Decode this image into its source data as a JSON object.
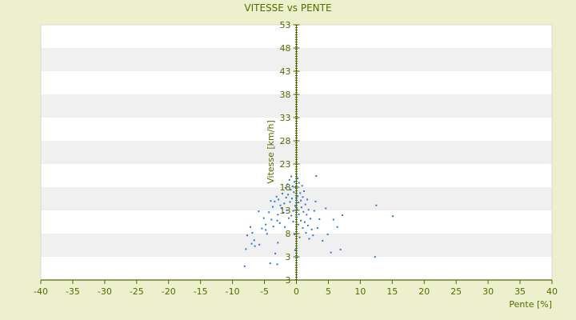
{
  "chart_data": {
    "type": "scatter",
    "title": "VITESSE vs PENTE",
    "xlabel": "Pente [%]",
    "ylabel": "Vitesse [km/h]",
    "xlim": [
      -40,
      40
    ],
    "ylim": [
      3,
      58
    ],
    "x_ticks": [
      "-40",
      "-35",
      "-30",
      "-25",
      "-20",
      "-15",
      "-10",
      "-5",
      "0",
      "5",
      "10",
      "15",
      "20",
      "25",
      "30",
      "35",
      "40"
    ],
    "y_ticks": [
      "3",
      "3",
      "8",
      "13",
      "18",
      "23",
      "28",
      "33",
      "38",
      "43",
      "48",
      "53"
    ],
    "grid": "horizontal alternating bands",
    "colors": {
      "page_bg": "#ecf0cc",
      "plot_band_light": "#ffffff",
      "plot_band_dark": "#f0f0f0",
      "text": "#556b00",
      "axis": "#556b00",
      "points": "#2f78c8"
    },
    "series": [
      {
        "points": [
          [
            -8.1,
            5.8
          ],
          [
            -7.7,
            12.1
          ],
          [
            -7.2,
            13.8
          ],
          [
            -6.9,
            12.6
          ],
          [
            -6.6,
            11.1
          ],
          [
            -5.9,
            17.0
          ],
          [
            -5.4,
            13.5
          ],
          [
            -5.1,
            15.6
          ],
          [
            -4.8,
            13.2
          ],
          [
            -4.6,
            12.4
          ],
          [
            -4.3,
            16.8
          ],
          [
            -4.0,
            19.1
          ],
          [
            -3.9,
            15.3
          ],
          [
            -3.7,
            17.9
          ],
          [
            -3.6,
            13.9
          ],
          [
            -3.4,
            19.0
          ],
          [
            -3.3,
            8.4
          ],
          [
            -3.1,
            20.0
          ],
          [
            -3.0,
            15.1
          ],
          [
            -2.9,
            16.3
          ],
          [
            -2.8,
            19.4
          ],
          [
            -2.6,
            14.6
          ],
          [
            -2.5,
            18.2
          ],
          [
            -2.3,
            17.6
          ],
          [
            -2.2,
            20.6
          ],
          [
            -2.0,
            16.7
          ],
          [
            -1.9,
            18.6
          ],
          [
            -1.8,
            13.8
          ],
          [
            -1.7,
            21.8
          ],
          [
            -1.6,
            19.8
          ],
          [
            -1.5,
            17.2
          ],
          [
            -1.4,
            22.5
          ],
          [
            -1.3,
            20.4
          ],
          [
            -1.2,
            15.6
          ],
          [
            -1.1,
            23.4
          ],
          [
            -1.0,
            18.9
          ],
          [
            -0.9,
            21.4
          ],
          [
            -0.8,
            16.1
          ],
          [
            -0.8,
            24.1
          ],
          [
            -0.7,
            19.6
          ],
          [
            -0.6,
            22.1
          ],
          [
            -0.5,
            17.1
          ],
          [
            -0.5,
            14.9
          ],
          [
            -0.4,
            20.9
          ],
          [
            -0.3,
            23.0
          ],
          [
            -0.3,
            12.3
          ],
          [
            -0.2,
            18.1
          ],
          [
            -0.2,
            9.1
          ],
          [
            -0.1,
            21.9
          ],
          [
            0.0,
            15.8
          ],
          [
            0.0,
            19.3
          ],
          [
            0.1,
            7.6
          ],
          [
            0.1,
            17.4
          ],
          [
            0.2,
            23.7
          ],
          [
            0.2,
            20.1
          ],
          [
            0.3,
            14.3
          ],
          [
            0.3,
            18.8
          ],
          [
            0.4,
            22.8
          ],
          [
            0.4,
            16.4
          ],
          [
            0.5,
            11.7
          ],
          [
            0.6,
            20.7
          ],
          [
            0.7,
            19.2
          ],
          [
            0.7,
            15.1
          ],
          [
            0.8,
            17.8
          ],
          [
            0.9,
            22.2
          ],
          [
            1.0,
            13.6
          ],
          [
            1.0,
            19.9
          ],
          [
            1.1,
            16.9
          ],
          [
            1.2,
            21.1
          ],
          [
            1.3,
            14.8
          ],
          [
            1.4,
            18.4
          ],
          [
            1.5,
            12.6
          ],
          [
            1.6,
            16.3
          ],
          [
            1.7,
            19.4
          ],
          [
            1.8,
            14.1
          ],
          [
            1.9,
            17.3
          ],
          [
            2.0,
            11.4
          ],
          [
            2.2,
            15.5
          ],
          [
            2.4,
            13.3
          ],
          [
            2.6,
            12.1
          ],
          [
            2.8,
            17.1
          ],
          [
            3.0,
            19.0
          ],
          [
            3.1,
            24.2
          ],
          [
            3.3,
            13.6
          ],
          [
            3.6,
            15.4
          ],
          [
            4.1,
            11.0
          ],
          [
            4.6,
            17.6
          ],
          [
            4.9,
            12.3
          ],
          [
            5.4,
            8.6
          ],
          [
            5.8,
            15.3
          ],
          [
            6.4,
            13.8
          ],
          [
            6.9,
            9.2
          ],
          [
            7.2,
            16.2
          ],
          [
            12.3,
            7.7
          ],
          [
            12.5,
            18.2
          ],
          [
            15.1,
            16.0
          ],
          [
            -3.0,
            6.2
          ],
          [
            -4.1,
            6.4
          ],
          [
            -7.9,
            9.3
          ],
          [
            -7.0,
            10.4
          ],
          [
            -5.8,
            10.2
          ],
          [
            -6.5,
            9.9
          ],
          [
            -4.8,
            14.3
          ],
          [
            -2.9,
            10.6
          ]
        ]
      }
    ]
  }
}
